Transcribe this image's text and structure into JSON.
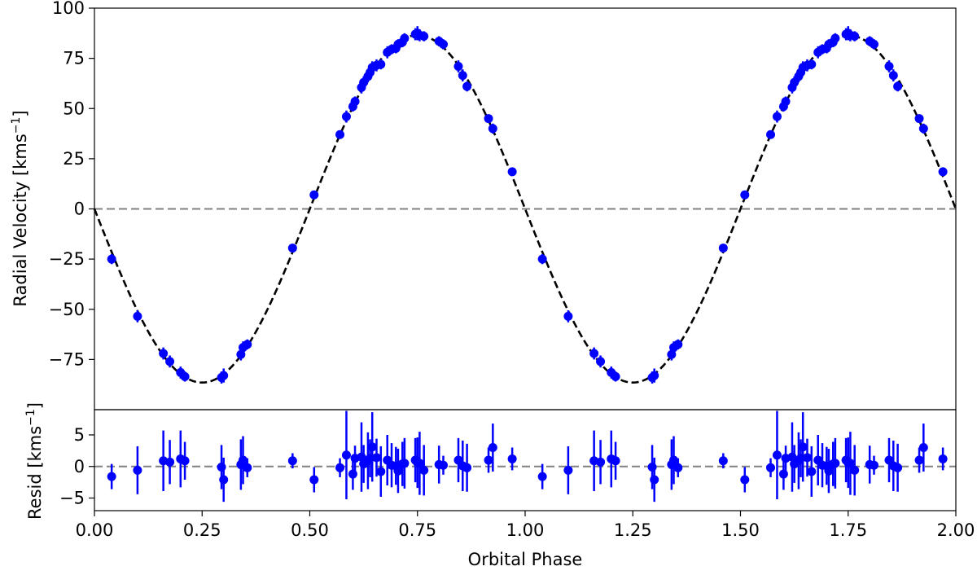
{
  "chart_data": [
    {
      "type": "scatter",
      "panel": "main",
      "xlabel": "Orbital Phase",
      "ylabel": "Radial Velocity [kms",
      "ylabel_sup": "−1",
      "ylabel_close": "]",
      "xlim": [
        0,
        2
      ],
      "ylim": [
        -100,
        100
      ],
      "y_ticks": [
        -75,
        -50,
        -25,
        0,
        25,
        50,
        75,
        100
      ],
      "y_tick_labels": [
        "−75",
        "−50",
        "−25",
        "0",
        "25",
        "50",
        "75",
        "100"
      ],
      "model": {
        "function": "-K*sin(2*pi*phase)",
        "K": 86.5,
        "style": "black dashed"
      },
      "zero_line": {
        "y": 0,
        "style": "gray dashed"
      },
      "series": [
        {
          "marker_color": "#0000ff",
          "phase": [
            0.04,
            0.1,
            0.16,
            0.175,
            0.2,
            0.21,
            0.295,
            0.3,
            0.34,
            0.345,
            0.355,
            0.46,
            0.51,
            0.57,
            0.585,
            0.6,
            0.605,
            0.62,
            0.625,
            0.635,
            0.64,
            0.645,
            0.655,
            0.665,
            0.68,
            0.69,
            0.7,
            0.705,
            0.715,
            0.72,
            0.745,
            0.75,
            0.755,
            0.765,
            0.8,
            0.81,
            0.845,
            0.855,
            0.865,
            0.915,
            0.925,
            0.97
          ],
          "rv": [
            -25,
            -53.5,
            -72,
            -76,
            -81.5,
            -83.5,
            -84,
            -83,
            -72.5,
            -69,
            -67.5,
            -19.5,
            7,
            37,
            46,
            51,
            53.5,
            60.5,
            63,
            66,
            68,
            70.5,
            71.5,
            72,
            78,
            79.5,
            80,
            82,
            83,
            85,
            87,
            87.5,
            86.5,
            86,
            83.5,
            82,
            71,
            66.5,
            61,
            45,
            40,
            18.5
          ],
          "resid": [
            -1.6,
            -0.6,
            0.9,
            0.7,
            1.2,
            0.9,
            -0.1,
            -2.1,
            0.3,
            1.0,
            -0.2,
            0.9,
            -2.1,
            -0.2,
            1.8,
            -1.2,
            1.3,
            1.5,
            0.4,
            0.9,
            1.3,
            3.1,
            1.4,
            -0.8,
            1.0,
            0.2,
            0.1,
            -0.7,
            0.4,
            0.5,
            1.0,
            0.6,
            0.5,
            -0.6,
            0.3,
            0.2,
            1.0,
            0.1,
            -0.2,
            1.0,
            3.0,
            1.2
          ],
          "rv_err": [
            2.5,
            3,
            3,
            3,
            3,
            2.5,
            3,
            3.5,
            3,
            3,
            2.5,
            2,
            2,
            2,
            3,
            2.5,
            2.5,
            3,
            3,
            3,
            3,
            3,
            3,
            2.5,
            3,
            2.5,
            2.5,
            2.5,
            2.5,
            2.5,
            3,
            3.5,
            3,
            2.5,
            2.5,
            2.5,
            3,
            3,
            2.5,
            2,
            2.5,
            2
          ],
          "resid_err": [
            2,
            3.8,
            4.8,
            3.5,
            4.5,
            3,
            3.5,
            3.5,
            4,
            3.8,
            1.5,
            1.2,
            2,
            1.5,
            7,
            2.5,
            2,
            5.5,
            3,
            4.5,
            3,
            5.5,
            3,
            4,
            4,
            3.5,
            3,
            3.5,
            3.5,
            4,
            3.5,
            4,
            5,
            4,
            3,
            1.5,
            3.5,
            4,
            3.8,
            2,
            3.8,
            1.8
          ]
        }
      ]
    },
    {
      "type": "scatter",
      "panel": "residuals",
      "xlabel": "Orbital Phase",
      "ylabel": "Resid [kms",
      "ylabel_sup": "−1",
      "ylabel_close": "]",
      "xlim": [
        0,
        2
      ],
      "ylim": [
        -7,
        9
      ],
      "y_ticks": [
        -5,
        0,
        5
      ],
      "y_tick_labels": [
        "−5",
        "0",
        "5"
      ],
      "x_ticks": [
        0,
        0.25,
        0.5,
        0.75,
        1,
        1.25,
        1.5,
        1.75,
        2
      ],
      "x_tick_labels": [
        "0.00",
        "0.25",
        "0.50",
        "0.75",
        "1.00",
        "1.25",
        "1.50",
        "1.75",
        "2.00"
      ],
      "zero_line": {
        "y": 0,
        "style": "gray dashed"
      }
    }
  ]
}
